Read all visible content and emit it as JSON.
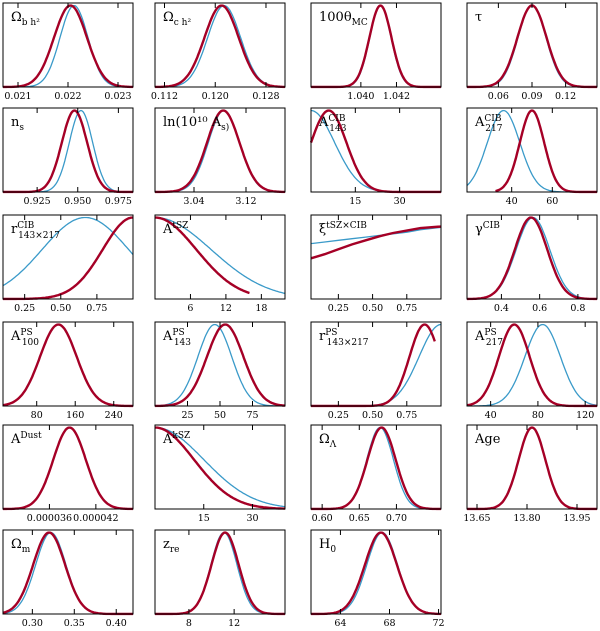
{
  "colors": {
    "primary": "#a50026",
    "secondary": "#3a9ac9",
    "axis": "#000000"
  },
  "chart_data": [
    {
      "type": "line",
      "label": "Ω_b h²",
      "xlim": [
        0.0207,
        0.0233
      ],
      "ticks": [
        {
          "value": 0.021,
          "label": "0.021"
        },
        {
          "value": 0.022,
          "label": "0.022"
        },
        {
          "value": 0.023,
          "label": "0.023"
        }
      ],
      "series": [
        {
          "color": "#a50026",
          "kind": "gauss",
          "mean": 0.02205,
          "sd": 0.00033
        },
        {
          "color": "#3a9ac9",
          "kind": "gauss",
          "mean": 0.02212,
          "sd": 0.00028
        }
      ]
    },
    {
      "type": "line",
      "label": "Ω_c h²",
      "xlim": [
        0.1105,
        0.131
      ],
      "ticks": [
        {
          "value": 0.112,
          "label": "0.112"
        },
        {
          "value": 0.12,
          "label": "0.120"
        },
        {
          "value": 0.128,
          "label": "0.128"
        }
      ],
      "series": [
        {
          "color": "#a50026",
          "kind": "gauss",
          "mean": 0.121,
          "sd": 0.0027
        },
        {
          "color": "#3a9ac9",
          "kind": "gauss",
          "mean": 0.1214,
          "sd": 0.0026
        }
      ]
    },
    {
      "type": "line",
      "label": "100θ_MC",
      "xlim": [
        1.0372,
        1.0445
      ],
      "ticks": [
        {
          "value": 1.04,
          "label": "1.040"
        },
        {
          "value": 1.042,
          "label": "1.042"
        }
      ],
      "series": [
        {
          "color": "#a50026",
          "kind": "gauss",
          "mean": 1.0411,
          "sd": 0.00062
        },
        {
          "color": "#3a9ac9",
          "kind": "gauss",
          "mean": 1.0411,
          "sd": 0.0006
        }
      ]
    },
    {
      "type": "line",
      "label": "τ",
      "xlim": [
        0.032,
        0.148
      ],
      "ticks": [
        {
          "value": 0.06,
          "label": "0.06"
        },
        {
          "value": 0.09,
          "label": "0.09"
        },
        {
          "value": 0.12,
          "label": "0.12"
        }
      ],
      "series": [
        {
          "color": "#a50026",
          "kind": "gauss",
          "mean": 0.09,
          "sd": 0.013
        },
        {
          "color": "#3a9ac9",
          "kind": "gauss",
          "mean": 0.09,
          "sd": 0.0125
        }
      ]
    },
    {
      "type": "line",
      "label": "n_s",
      "xlim": [
        0.904,
        0.984
      ],
      "ticks": [
        {
          "value": 0.925,
          "label": "0.925"
        },
        {
          "value": 0.95,
          "label": "0.950"
        },
        {
          "value": 0.975,
          "label": "0.975"
        }
      ],
      "series": [
        {
          "color": "#a50026",
          "kind": "gauss",
          "mean": 0.948,
          "sd": 0.0078
        },
        {
          "color": "#3a9ac9",
          "kind": "gauss",
          "mean": 0.952,
          "sd": 0.0072
        }
      ]
    },
    {
      "type": "line",
      "label": "ln(10¹⁰ A_s)",
      "xlim": [
        2.98,
        3.18
      ],
      "ticks": [
        {
          "value": 3.04,
          "label": "3.04"
        },
        {
          "value": 3.12,
          "label": "3.12"
        }
      ],
      "series": [
        {
          "color": "#a50026",
          "kind": "gauss",
          "mean": 3.085,
          "sd": 0.025
        },
        {
          "color": "#3a9ac9",
          "kind": "gauss",
          "mean": 3.086,
          "sd": 0.024
        }
      ]
    },
    {
      "type": "line",
      "label": "A^CIB_143",
      "xlim": [
        0,
        44
      ],
      "ticks": [
        {
          "value": 15,
          "label": "15"
        },
        {
          "value": 30,
          "label": "30"
        }
      ],
      "series": [
        {
          "color": "#a50026",
          "kind": "gauss",
          "mean": 6,
          "sd": 6
        },
        {
          "color": "#3a9ac9",
          "kind": "gauss",
          "mean": 0,
          "sd": 8
        }
      ]
    },
    {
      "type": "line",
      "label": "A^CIB_217",
      "xlim": [
        18,
        82
      ],
      "ticks": [
        {
          "value": 40,
          "label": "40"
        },
        {
          "value": 60,
          "label": "60"
        }
      ],
      "series": [
        {
          "color": "#a50026",
          "kind": "gauss",
          "mean": 50,
          "sd": 6,
          "xmin": 32
        },
        {
          "color": "#3a9ac9",
          "kind": "gauss",
          "mean": 36,
          "sd": 8
        }
      ]
    },
    {
      "type": "line",
      "label": "r^CIB_143×217",
      "xlim": [
        0.1,
        1.0
      ],
      "ticks": [
        {
          "value": 0.25,
          "label": "0.25"
        },
        {
          "value": 0.5,
          "label": "0.50"
        },
        {
          "value": 0.75,
          "label": "0.75"
        }
      ],
      "series": [
        {
          "color": "#a50026",
          "kind": "gauss",
          "mean": 1.0,
          "sd": 0.21
        },
        {
          "color": "#3a9ac9",
          "kind": "gauss",
          "mean": 0.67,
          "sd": 0.3
        }
      ]
    },
    {
      "type": "line",
      "label": "A^tSZ",
      "xlim": [
        0,
        22
      ],
      "ticks": [
        {
          "value": 6,
          "label": "6"
        },
        {
          "value": 12,
          "label": "12"
        },
        {
          "value": 18,
          "label": "18"
        }
      ],
      "series": [
        {
          "color": "#a50026",
          "kind": "gauss",
          "mean": 0,
          "sd": 7,
          "xmax": 16
        },
        {
          "color": "#3a9ac9",
          "kind": "gauss",
          "mean": 0,
          "sd": 9.5
        }
      ]
    },
    {
      "type": "line",
      "label": "ξ^tSZ×CIB",
      "xlim": [
        0.05,
        1.0
      ],
      "ticks": [
        {
          "value": 0.25,
          "label": "0.25"
        },
        {
          "value": 0.5,
          "label": "0.50"
        },
        {
          "value": 0.75,
          "label": "0.75"
        }
      ],
      "series": [
        {
          "color": "#a50026",
          "kind": "points",
          "x": [
            0.05,
            0.15,
            0.25,
            0.35,
            0.45,
            0.55,
            0.65,
            0.75,
            0.85,
            1.0
          ],
          "y": [
            0.5,
            0.55,
            0.61,
            0.67,
            0.72,
            0.77,
            0.81,
            0.84,
            0.87,
            0.89
          ]
        },
        {
          "color": "#3a9ac9",
          "kind": "points",
          "x": [
            0.05,
            0.15,
            0.25,
            0.35,
            0.45,
            0.55,
            0.65,
            0.75,
            0.85,
            1.0
          ],
          "y": [
            0.68,
            0.7,
            0.72,
            0.74,
            0.76,
            0.78,
            0.8,
            0.82,
            0.85,
            0.88
          ]
        }
      ]
    },
    {
      "type": "line",
      "label": "γ^CIB",
      "xlim": [
        0.22,
        0.9
      ],
      "ticks": [
        {
          "value": 0.4,
          "label": "0.4"
        },
        {
          "value": 0.6,
          "label": "0.6"
        },
        {
          "value": 0.8,
          "label": "0.8"
        }
      ],
      "series": [
        {
          "color": "#a50026",
          "kind": "gauss",
          "mean": 0.555,
          "sd": 0.085
        },
        {
          "color": "#3a9ac9",
          "kind": "gauss",
          "mean": 0.565,
          "sd": 0.088
        }
      ]
    },
    {
      "type": "line",
      "label": "A^PS_100",
      "xlim": [
        10,
        280
      ],
      "ticks": [
        {
          "value": 80,
          "label": "80"
        },
        {
          "value": 160,
          "label": "160"
        },
        {
          "value": 240,
          "label": "240"
        }
      ],
      "series": [
        {
          "color": "#a50026",
          "kind": "gauss",
          "mean": 125,
          "sd": 38
        },
        {
          "color": "#3a9ac9",
          "kind": "gauss",
          "mean": 125,
          "sd": 38
        }
      ]
    },
    {
      "type": "line",
      "label": "A^PS_143",
      "xlim": [
        0,
        100
      ],
      "ticks": [
        {
          "value": 25,
          "label": "25"
        },
        {
          "value": 50,
          "label": "50"
        },
        {
          "value": 75,
          "label": "75"
        }
      ],
      "series": [
        {
          "color": "#a50026",
          "kind": "gauss",
          "mean": 54,
          "sd": 14
        },
        {
          "color": "#3a9ac9",
          "kind": "gauss",
          "mean": 46,
          "sd": 13
        }
      ]
    },
    {
      "type": "line",
      "label": "r^PS_143×217",
      "xlim": [
        0.05,
        1.0
      ],
      "ticks": [
        {
          "value": 0.25,
          "label": "0.25"
        },
        {
          "value": 0.5,
          "label": "0.50"
        },
        {
          "value": 0.75,
          "label": "0.75"
        }
      ],
      "series": [
        {
          "color": "#a50026",
          "kind": "gauss",
          "mean": 0.88,
          "sd": 0.11,
          "xmax": 0.955
        },
        {
          "color": "#3a9ac9",
          "kind": "gauss",
          "mean": 1.0,
          "sd": 0.16
        }
      ]
    },
    {
      "type": "line",
      "label": "A^PS_217",
      "xlim": [
        20,
        130
      ],
      "ticks": [
        {
          "value": 40,
          "label": "40"
        },
        {
          "value": 80,
          "label": "80"
        },
        {
          "value": 120,
          "label": "120"
        }
      ],
      "series": [
        {
          "color": "#a50026",
          "kind": "gauss",
          "mean": 60,
          "sd": 13
        },
        {
          "color": "#3a9ac9",
          "kind": "gauss",
          "mean": 84,
          "sd": 15
        }
      ]
    },
    {
      "type": "line",
      "label": "A^Dust",
      "xlim": [
        3e-05,
        4.68e-05
      ],
      "ticks": [
        {
          "value": 3.6e-05,
          "label": "0.000036"
        },
        {
          "value": 4.2e-05,
          "label": "0.000042"
        }
      ],
      "series": [
        {
          "color": "#a50026",
          "kind": "gauss",
          "mean": 3.86e-05,
          "sd": 2.1e-06
        },
        {
          "color": "#3a9ac9",
          "kind": "gauss",
          "mean": 3.86e-05,
          "sd": 2.1e-06
        }
      ]
    },
    {
      "type": "line",
      "label": "A^kSZ",
      "xlim": [
        0,
        40
      ],
      "ticks": [
        {
          "value": 15,
          "label": "15"
        },
        {
          "value": 30,
          "label": "30"
        }
      ],
      "series": [
        {
          "color": "#a50026",
          "kind": "gauss",
          "mean": 0,
          "sd": 12
        },
        {
          "color": "#3a9ac9",
          "kind": "gauss",
          "mean": 0,
          "sd": 15
        }
      ]
    },
    {
      "type": "line",
      "label": "Ω_Λ",
      "xlim": [
        0.585,
        0.76
      ],
      "ticks": [
        {
          "value": 0.6,
          "label": "0.60"
        },
        {
          "value": 0.65,
          "label": "0.65"
        },
        {
          "value": 0.7,
          "label": "0.70"
        }
      ],
      "series": [
        {
          "color": "#a50026",
          "kind": "gauss",
          "mean": 0.68,
          "sd": 0.019
        },
        {
          "color": "#3a9ac9",
          "kind": "gauss",
          "mean": 0.678,
          "sd": 0.018
        }
      ]
    },
    {
      "type": "line",
      "label": "Age",
      "xlim": [
        13.62,
        14.01
      ],
      "ticks": [
        {
          "value": 13.65,
          "label": "13.65"
        },
        {
          "value": 13.8,
          "label": "13.80"
        },
        {
          "value": 13.95,
          "label": "13.95"
        }
      ],
      "series": [
        {
          "color": "#a50026",
          "kind": "gauss",
          "mean": 13.815,
          "sd": 0.04
        },
        {
          "color": "#3a9ac9",
          "kind": "gauss",
          "mean": 13.815,
          "sd": 0.04
        }
      ]
    },
    {
      "type": "line",
      "label": "Ω_m",
      "xlim": [
        0.265,
        0.42
      ],
      "ticks": [
        {
          "value": 0.3,
          "label": "0.30"
        },
        {
          "value": 0.35,
          "label": "0.35"
        },
        {
          "value": 0.4,
          "label": "0.40"
        }
      ],
      "series": [
        {
          "color": "#a50026",
          "kind": "gauss",
          "mean": 0.32,
          "sd": 0.019
        },
        {
          "color": "#3a9ac9",
          "kind": "gauss",
          "mean": 0.322,
          "sd": 0.018
        }
      ]
    },
    {
      "type": "line",
      "label": "z_re",
      "xlim": [
        5.0,
        16.5
      ],
      "ticks": [
        {
          "value": 8,
          "label": "8"
        },
        {
          "value": 12,
          "label": "12"
        }
      ],
      "series": [
        {
          "color": "#a50026",
          "kind": "gauss",
          "mean": 11.2,
          "sd": 1.2
        },
        {
          "color": "#3a9ac9",
          "kind": "gauss",
          "mean": 11.1,
          "sd": 1.15
        }
      ]
    },
    {
      "type": "line",
      "label": "H_0",
      "xlim": [
        61.6,
        72.2
      ],
      "ticks": [
        {
          "value": 64,
          "label": "64"
        },
        {
          "value": 68,
          "label": "68"
        },
        {
          "value": 72,
          "label": "72"
        }
      ],
      "series": [
        {
          "color": "#a50026",
          "kind": "gauss",
          "mean": 67.3,
          "sd": 1.3
        },
        {
          "color": "#3a9ac9",
          "kind": "gauss",
          "mean": 67.4,
          "sd": 1.25
        }
      ]
    }
  ]
}
